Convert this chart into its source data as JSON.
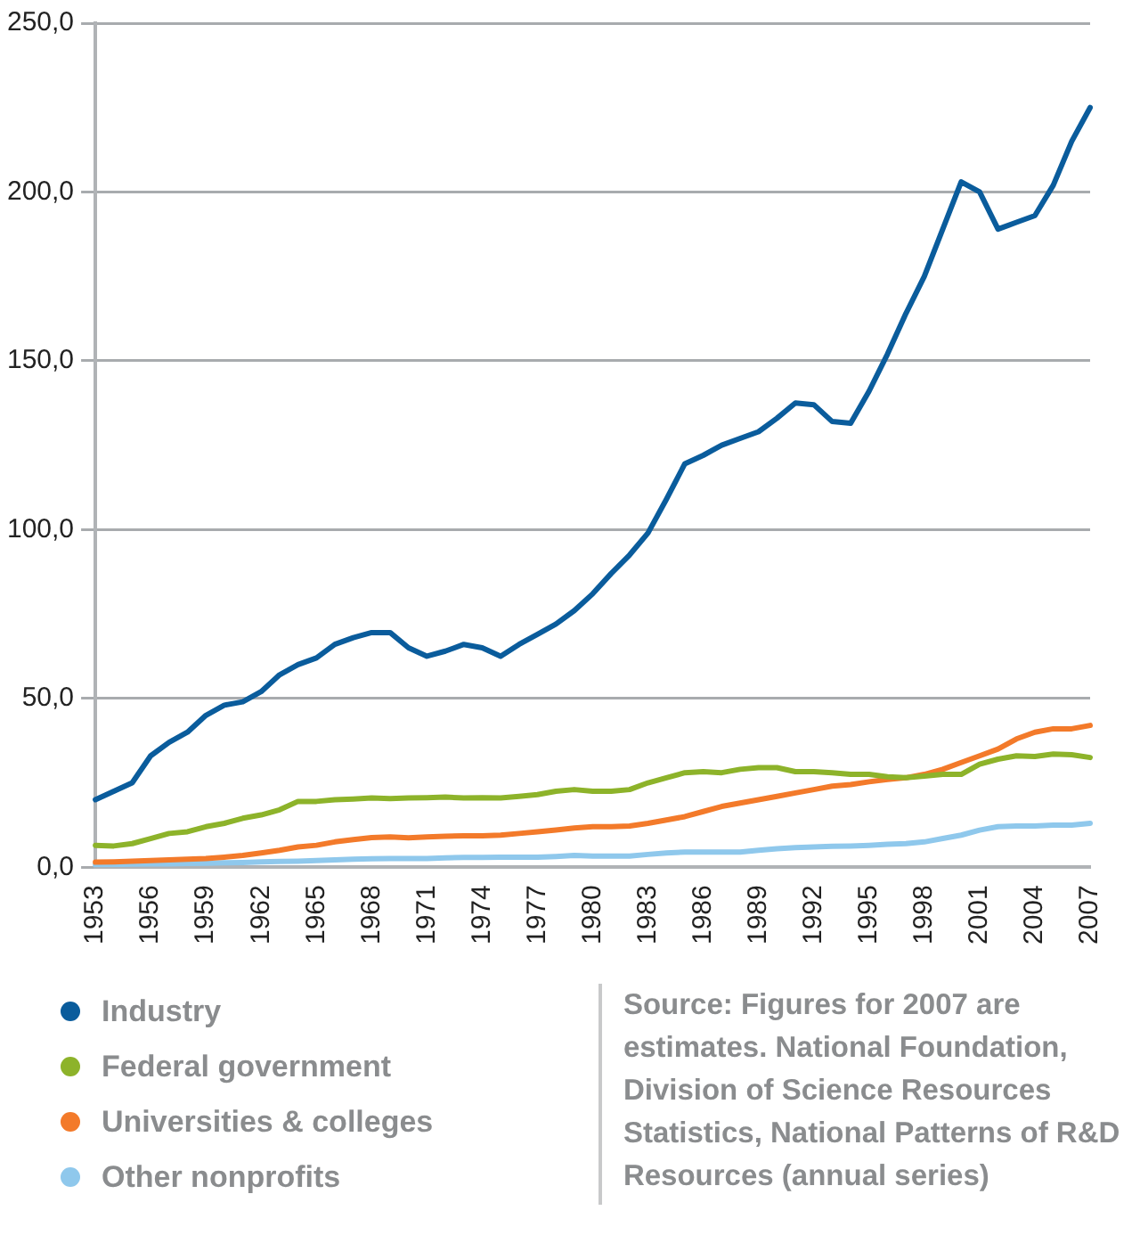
{
  "chart_data": {
    "type": "line",
    "categories": [
      "1953",
      null,
      null,
      "1956",
      null,
      null,
      "1959",
      null,
      null,
      "1962",
      null,
      null,
      "1965",
      null,
      null,
      "1968",
      null,
      null,
      "1971",
      null,
      null,
      "1974",
      null,
      null,
      "1977",
      null,
      null,
      "1980",
      null,
      null,
      "1983",
      null,
      null,
      "1986",
      null,
      null,
      "1989",
      null,
      null,
      "1992",
      null,
      null,
      "1995",
      null,
      null,
      "1998",
      null,
      null,
      "2001",
      null,
      null,
      "2004",
      null,
      null,
      "2007"
    ],
    "ylim": [
      0,
      250
    ],
    "yticks": [
      {
        "value": 0,
        "label": "0,0"
      },
      {
        "value": 50,
        "label": "50,0"
      },
      {
        "value": 100,
        "label": "100,0"
      },
      {
        "value": 150,
        "label": "150,0"
      },
      {
        "value": 200,
        "label": "200,0"
      },
      {
        "value": 250,
        "label": "250,0"
      }
    ],
    "grid": "y",
    "legend": "bottom",
    "marker": "none",
    "line_style": "solid",
    "series": [
      {
        "name": "Industry",
        "color": "#0a5c9c",
        "values": [
          20,
          22.5,
          25,
          33,
          37,
          40,
          45,
          48,
          49,
          52,
          57,
          60,
          62,
          66,
          68,
          69.5,
          69.5,
          65,
          62.5,
          64,
          66,
          65,
          62.5,
          66,
          69,
          72,
          76,
          81,
          87,
          92.5,
          99,
          109,
          119.5,
          122,
          125,
          127,
          129,
          133,
          137.5,
          137,
          132,
          131.5,
          141,
          152,
          164,
          175,
          189,
          203,
          200,
          189,
          191,
          193,
          202,
          215,
          225
        ]
      },
      {
        "name": "Federal government",
        "color": "#8db32a",
        "values": [
          6.5,
          6.3,
          7,
          8.5,
          10,
          10.5,
          12,
          13,
          14.5,
          15.5,
          17,
          19.5,
          19.5,
          20,
          20.2,
          20.5,
          20.3,
          20.5,
          20.6,
          20.8,
          20.5,
          20.6,
          20.5,
          21,
          21.5,
          22.5,
          23,
          22.5,
          22.5,
          23,
          25,
          26.5,
          28,
          28.3,
          28,
          29,
          29.5,
          29.5,
          28.3,
          28.3,
          28,
          27.5,
          27.5,
          26.8,
          26.5,
          27,
          27.5,
          27.5,
          30.5,
          32,
          33,
          32.8,
          33.5,
          33.3,
          32.5
        ]
      },
      {
        "name": "Universities & colleges",
        "color": "#f37a2a",
        "values": [
          1.5,
          1.6,
          1.8,
          2.0,
          2.2,
          2.4,
          2.6,
          3,
          3.5,
          4.2,
          5,
          6,
          6.5,
          7.5,
          8.2,
          8.8,
          9,
          8.7,
          9,
          9.2,
          9.3,
          9.3,
          9.5,
          10,
          10.5,
          11,
          11.6,
          12,
          12,
          12.2,
          13,
          14,
          15,
          16.5,
          18,
          19,
          20,
          21,
          22,
          23,
          24,
          24.5,
          25.3,
          26,
          26.5,
          27.5,
          29,
          31,
          33,
          35,
          38,
          40,
          41,
          41,
          42
        ]
      },
      {
        "name": "Other nonprofits",
        "color": "#8fc8ec",
        "values": [
          0.7,
          0.8,
          0.9,
          1,
          1,
          1.1,
          1.2,
          1.3,
          1.4,
          1.6,
          1.7,
          1.8,
          2,
          2.2,
          2.4,
          2.5,
          2.6,
          2.6,
          2.6,
          2.8,
          2.9,
          2.9,
          3,
          3,
          3,
          3.2,
          3.5,
          3.3,
          3.3,
          3.3,
          3.8,
          4.2,
          4.5,
          4.5,
          4.5,
          4.5,
          5,
          5.5,
          5.8,
          6,
          6.2,
          6.3,
          6.5,
          6.8,
          7,
          7.5,
          8.5,
          9.5,
          11,
          12,
          12.2,
          12.2,
          12.5,
          12.5,
          13
        ]
      }
    ],
    "annotations": [
      "Source: Figures for 2007 are estimates. National Foundation, Division of Science Resources Statistics, National Patterns of R&D Resources (annual series)"
    ]
  }
}
